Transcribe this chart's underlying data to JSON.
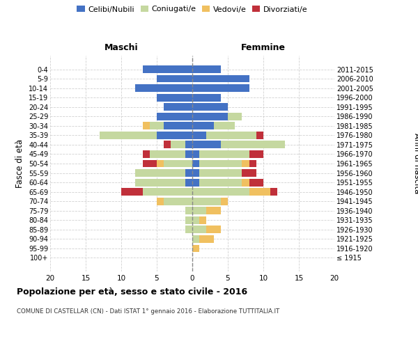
{
  "age_groups": [
    "100+",
    "95-99",
    "90-94",
    "85-89",
    "80-84",
    "75-79",
    "70-74",
    "65-69",
    "60-64",
    "55-59",
    "50-54",
    "45-49",
    "40-44",
    "35-39",
    "30-34",
    "25-29",
    "20-24",
    "15-19",
    "10-14",
    "5-9",
    "0-4"
  ],
  "birth_years": [
    "≤ 1915",
    "1916-1920",
    "1921-1925",
    "1926-1930",
    "1931-1935",
    "1936-1940",
    "1941-1945",
    "1946-1950",
    "1951-1955",
    "1956-1960",
    "1961-1965",
    "1966-1970",
    "1971-1975",
    "1976-1980",
    "1981-1985",
    "1986-1990",
    "1991-1995",
    "1996-2000",
    "2001-2005",
    "2006-2010",
    "2011-2015"
  ],
  "maschi": {
    "celibi": [
      0,
      0,
      0,
      0,
      0,
      0,
      0,
      0,
      1,
      1,
      0,
      1,
      1,
      5,
      4,
      5,
      4,
      5,
      8,
      5,
      7
    ],
    "coniugati": [
      0,
      0,
      0,
      1,
      1,
      1,
      4,
      7,
      7,
      7,
      4,
      5,
      2,
      8,
      2,
      0,
      0,
      0,
      0,
      0,
      0
    ],
    "vedovi": [
      0,
      0,
      0,
      0,
      0,
      0,
      1,
      0,
      0,
      0,
      1,
      0,
      0,
      0,
      1,
      0,
      0,
      0,
      0,
      0,
      0
    ],
    "divorziati": [
      0,
      0,
      0,
      0,
      0,
      0,
      0,
      3,
      0,
      0,
      2,
      1,
      1,
      0,
      0,
      0,
      0,
      0,
      0,
      0,
      0
    ]
  },
  "femmine": {
    "nubili": [
      0,
      0,
      0,
      0,
      0,
      0,
      0,
      0,
      1,
      1,
      1,
      1,
      4,
      2,
      3,
      5,
      5,
      4,
      8,
      8,
      4
    ],
    "coniugate": [
      0,
      0,
      1,
      2,
      1,
      2,
      4,
      8,
      6,
      6,
      6,
      7,
      9,
      7,
      3,
      2,
      0,
      0,
      0,
      0,
      0
    ],
    "vedove": [
      0,
      1,
      2,
      2,
      1,
      2,
      1,
      3,
      1,
      0,
      1,
      0,
      0,
      0,
      0,
      0,
      0,
      0,
      0,
      0,
      0
    ],
    "divorziate": [
      0,
      0,
      0,
      0,
      0,
      0,
      0,
      1,
      2,
      2,
      1,
      2,
      0,
      1,
      0,
      0,
      0,
      0,
      0,
      0,
      0
    ]
  },
  "colors": {
    "celibi_nubili": "#4472c4",
    "coniugati": "#c5d8a0",
    "vedovi": "#f0c060",
    "divorziati": "#c0303a"
  },
  "xlim": [
    -20,
    20
  ],
  "xticks": [
    -20,
    -15,
    -10,
    -5,
    0,
    5,
    10,
    15,
    20
  ],
  "xticklabels": [
    "20",
    "15",
    "10",
    "5",
    "0",
    "5",
    "10",
    "15",
    "20"
  ],
  "title": "Popolazione per età, sesso e stato civile - 2016",
  "subtitle": "COMUNE DI CASTELLAR (CN) - Dati ISTAT 1° gennaio 2016 - Elaborazione TUTTITALIA.IT",
  "ylabel_left": "Fasce di età",
  "ylabel_right": "Anni di nascita",
  "maschi_label": "Maschi",
  "femmine_label": "Femmine",
  "legend_labels": [
    "Celibi/Nubili",
    "Coniugati/e",
    "Vedovi/e",
    "Divorziati/e"
  ],
  "background_color": "#ffffff",
  "grid_color": "#cccccc"
}
